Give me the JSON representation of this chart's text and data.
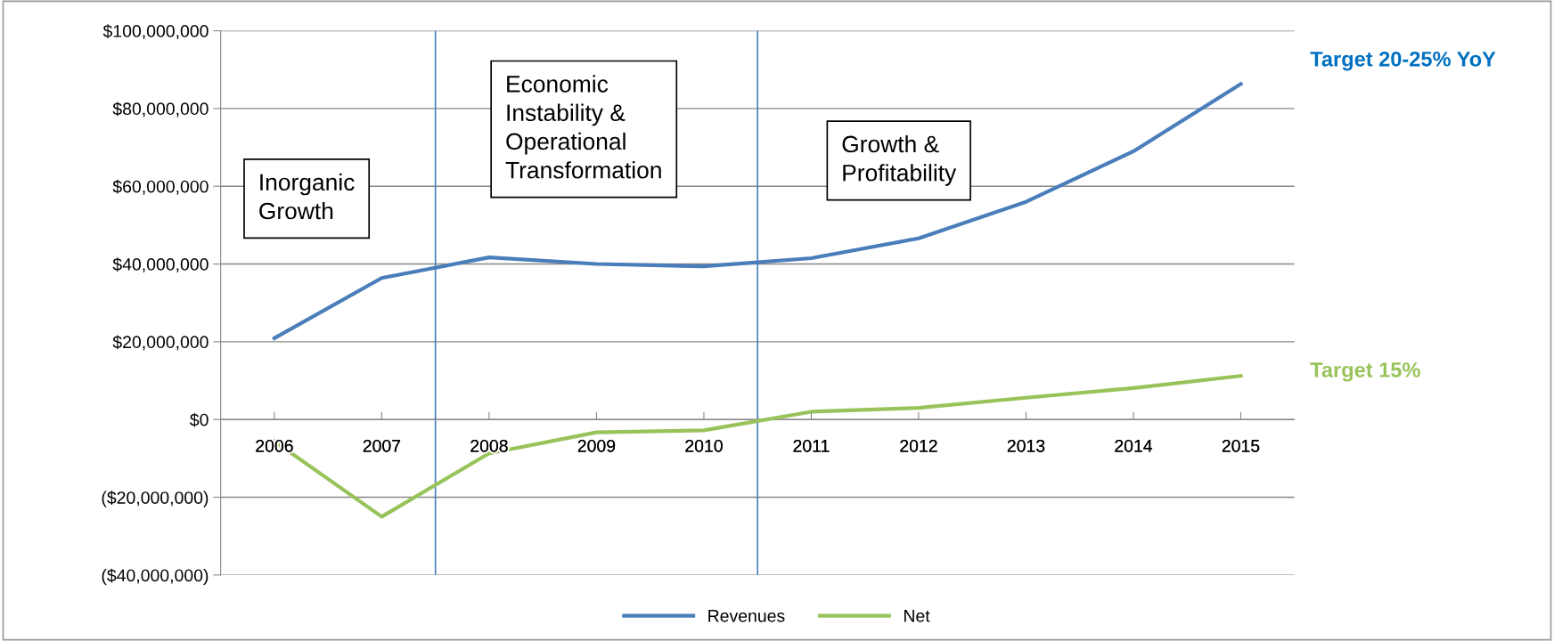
{
  "chart_data": {
    "type": "line",
    "x": [
      2006,
      2007,
      2008,
      2009,
      2010,
      2011,
      2012,
      2013,
      2014,
      2015
    ],
    "series": [
      {
        "name": "Revenues",
        "color": "#4a7ebb",
        "values": [
          20900000,
          36400000,
          41700000,
          40000000,
          39400000,
          41500000,
          46600000,
          56000000,
          69000000,
          86300000
        ]
      },
      {
        "name": "Net",
        "color": "#98c35a",
        "values": [
          -5600000,
          -25000000,
          -8700000,
          -3300000,
          -2800000,
          2000000,
          3000000,
          5600000,
          8100000,
          11200000
        ]
      }
    ],
    "xlim": [
      2005.5,
      2015.5
    ],
    "xticks": [
      2006,
      2007,
      2008,
      2009,
      2010,
      2011,
      2012,
      2013,
      2014,
      2015
    ],
    "ylim": [
      -40000000,
      100000000
    ],
    "yticks": [
      {
        "value": -40000000,
        "label": "($40,000,000)"
      },
      {
        "value": -20000000,
        "label": "($20,000,000)"
      },
      {
        "value": 0,
        "label": "$0"
      },
      {
        "value": 20000000,
        "label": "$20,000,000"
      },
      {
        "value": 40000000,
        "label": "$40,000,000"
      },
      {
        "value": 60000000,
        "label": "$60,000,000"
      },
      {
        "value": 80000000,
        "label": "$80,000,000"
      },
      {
        "value": 100000000,
        "label": "$100,000,000"
      }
    ],
    "ref_lines": [
      {
        "axis": "x",
        "value": 2007.5,
        "color": "#4a7ebb"
      },
      {
        "axis": "x",
        "value": 2010.5,
        "color": "#4a7ebb"
      }
    ],
    "annotations": [
      "Inorganic\nGrowth",
      "Economic\nInstability &\nOperational\nTransformation",
      "Growth &\nProfitability",
      "Target 20-25% YoY",
      "Target 15%"
    ],
    "grid": "y",
    "legend": "bottom",
    "marker": "none",
    "line_style": "solid"
  }
}
